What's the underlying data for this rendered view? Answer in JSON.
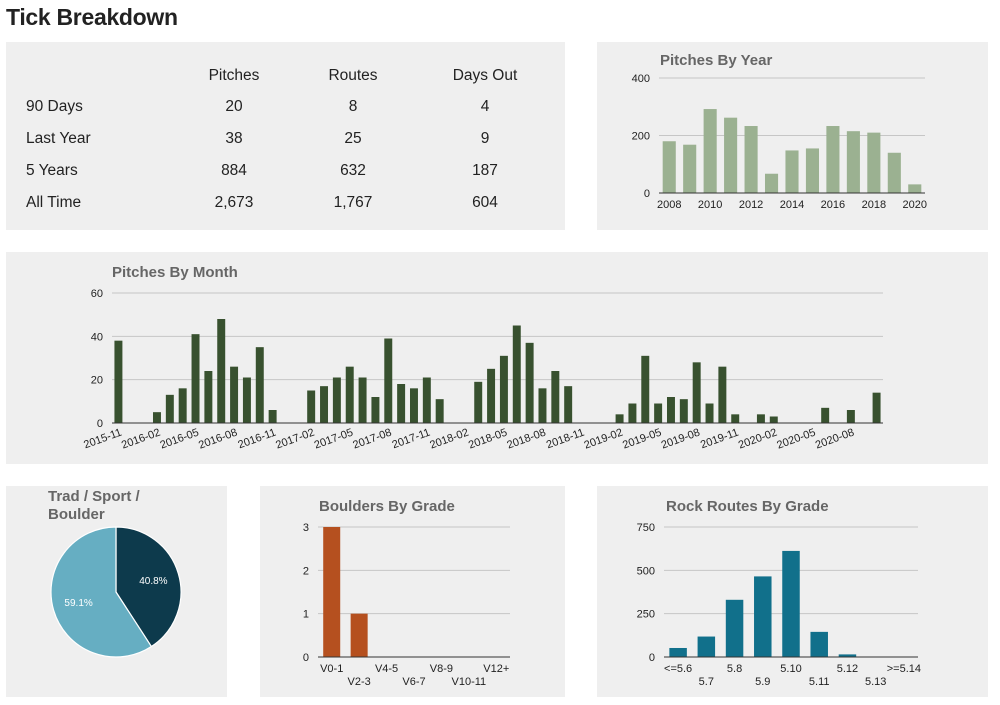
{
  "page": {
    "title": "Tick Breakdown"
  },
  "stats": {
    "columns": [
      "Pitches",
      "Routes",
      "Days Out"
    ],
    "rows": [
      {
        "label": "90 Days",
        "values": [
          "20",
          "8",
          "4"
        ]
      },
      {
        "label": "Last Year",
        "values": [
          "38",
          "25",
          "9"
        ]
      },
      {
        "label": "5 Years",
        "values": [
          "884",
          "632",
          "187"
        ]
      },
      {
        "label": "All Time",
        "values": [
          "2,673",
          "1,767",
          "604"
        ]
      }
    ]
  },
  "colors": {
    "panel_bg": "#efefef",
    "year_bars": "#9bb191",
    "month_bars": "#38512f",
    "boulder_bars": "#b5501f",
    "rock_bars": "#11708b",
    "pie_dark": "#0d3a4c",
    "pie_light": "#66aec2",
    "grid": "#c6c6c6",
    "axis": "#333333"
  },
  "chart_data": [
    {
      "id": "pitches_by_year",
      "type": "bar",
      "title": "Pitches By Year",
      "categories": [
        "2008",
        "2009",
        "2010",
        "2011",
        "2012",
        "2013",
        "2014",
        "2015",
        "2016",
        "2017",
        "2018",
        "2019",
        "2020"
      ],
      "values": [
        180,
        168,
        292,
        262,
        233,
        67,
        148,
        155,
        233,
        215,
        210,
        140,
        30
      ],
      "x_tick_labels": [
        "2008",
        "2010",
        "2012",
        "2014",
        "2016",
        "2018",
        "2020"
      ],
      "ylim": [
        0,
        400
      ],
      "y_ticks": [
        0,
        200,
        400
      ],
      "grid": true
    },
    {
      "id": "pitches_by_month",
      "type": "bar",
      "title": "Pitches By Month",
      "categories": [
        "2015-11",
        "2015-12",
        "2016-01",
        "2016-02",
        "2016-03",
        "2016-04",
        "2016-05",
        "2016-06",
        "2016-07",
        "2016-08",
        "2016-09",
        "2016-10",
        "2016-11",
        "2016-12",
        "2017-01",
        "2017-02",
        "2017-03",
        "2017-04",
        "2017-05",
        "2017-06",
        "2017-07",
        "2017-08",
        "2017-09",
        "2017-10",
        "2017-11",
        "2017-12",
        "2018-01",
        "2018-02",
        "2018-03",
        "2018-04",
        "2018-05",
        "2018-06",
        "2018-07",
        "2018-08",
        "2018-09",
        "2018-10",
        "2018-11",
        "2018-12",
        "2019-01",
        "2019-02",
        "2019-03",
        "2019-04",
        "2019-05",
        "2019-06",
        "2019-07",
        "2019-08",
        "2019-09",
        "2019-10",
        "2019-11",
        "2019-12",
        "2020-01",
        "2020-02",
        "2020-03",
        "2020-04",
        "2020-05",
        "2020-06",
        "2020-07",
        "2020-08",
        "2020-09",
        "2020-10"
      ],
      "values": [
        38,
        0,
        0,
        5,
        13,
        16,
        41,
        24,
        48,
        26,
        21,
        35,
        6,
        0,
        0,
        15,
        17,
        21,
        26,
        21,
        12,
        39,
        18,
        16,
        21,
        11,
        0,
        0,
        19,
        25,
        31,
        45,
        37,
        16,
        24,
        17,
        0,
        0,
        0,
        4,
        9,
        31,
        9,
        12,
        11,
        28,
        9,
        26,
        4,
        0,
        4,
        3,
        0,
        0,
        0,
        7,
        0,
        6,
        0,
        14
      ],
      "x_tick_labels": [
        "2015-11",
        "2016-02",
        "2016-05",
        "2016-08",
        "2016-11",
        "2017-02",
        "2017-05",
        "2017-08",
        "2017-11",
        "2018-02",
        "2018-05",
        "2018-08",
        "2018-11",
        "2019-02",
        "2019-05",
        "2019-08",
        "2019-11",
        "2020-02",
        "2020-05",
        "2020-08"
      ],
      "ylim": [
        0,
        60
      ],
      "y_ticks": [
        0,
        20,
        40,
        60
      ],
      "grid": true
    },
    {
      "id": "trad_sport_boulder",
      "type": "pie",
      "title_lines": [
        "Trad / Sport /",
        "Boulder"
      ],
      "slices": [
        {
          "value": 40.8,
          "label": "40.8%",
          "color": "#0d3a4c"
        },
        {
          "value": 59.1,
          "label": "59.1%",
          "color": "#66aec2"
        }
      ]
    },
    {
      "id": "boulders_by_grade",
      "type": "bar",
      "title": "Boulders By Grade",
      "categories": [
        "V0-1",
        "V2-3",
        "V4-5",
        "V6-7",
        "V8-9",
        "V10-11",
        "V12+"
      ],
      "values": [
        3,
        1,
        0,
        0,
        0,
        0,
        0
      ],
      "ylim": [
        0,
        3
      ],
      "y_ticks": [
        0,
        1,
        2,
        3
      ],
      "grid": true
    },
    {
      "id": "rock_routes_by_grade",
      "type": "bar",
      "title": "Rock Routes By Grade",
      "categories": [
        "<=5.6",
        "5.7",
        "5.8",
        "5.9",
        "5.10",
        "5.11",
        "5.12",
        "5.13",
        ">=5.14"
      ],
      "values": [
        52,
        118,
        330,
        465,
        612,
        145,
        15,
        0,
        0
      ],
      "ylim": [
        0,
        750
      ],
      "y_ticks": [
        0,
        250,
        500,
        750
      ],
      "grid": true
    }
  ]
}
